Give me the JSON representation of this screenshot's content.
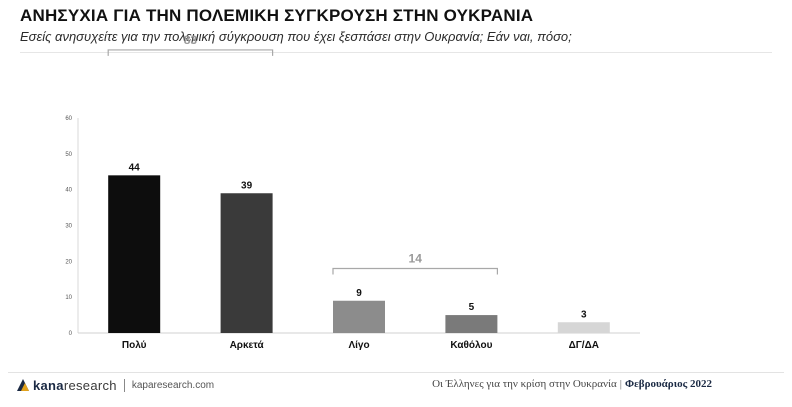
{
  "header": {
    "title": "ΑΝΗΣΥΧΙΑ ΓΙΑ ΤΗΝ ΠΟΛΕΜΙΚΗ ΣΥΓΚΡΟΥΣΗ ΣΤΗΝ ΟΥΚΡΑΝΙΑ",
    "subtitle": "Εσείς ανησυχείτε για την πολεμική σύγκρουση που έχει ξεσπάσει στην Ουκρανία; Εάν ναι, πόσο;"
  },
  "chart_data": {
    "type": "bar",
    "title": "",
    "xlabel": "",
    "ylabel": "",
    "categories": [
      "Πολύ",
      "Αρκετά",
      "Λίγο",
      "Καθόλου",
      "ΔΓ/ΔΑ"
    ],
    "values": [
      44,
      39,
      9,
      5,
      3
    ],
    "value_labels": [
      "44",
      "39",
      "9",
      "5",
      "3"
    ],
    "bar_colors": [
      "#0d0d0d",
      "#3a3a3a",
      "#8c8c8c",
      "#7a7a7a",
      "#d6d6d6"
    ],
    "ylim": [
      0,
      60
    ],
    "yticks": [
      "0",
      "10",
      "20",
      "30",
      "40",
      "50",
      "60"
    ],
    "grid": false,
    "legend": "none",
    "brackets": [
      {
        "label": "83",
        "from": 0,
        "to": 1,
        "level": 79
      },
      {
        "label": "14",
        "from": 2,
        "to": 3,
        "level": 18
      }
    ],
    "bracket_color": "#a8a8a8"
  },
  "footer": {
    "brand_kana": "kana",
    "brand_research": "research",
    "website": "kaparesearch.com",
    "report_title": "Οι Έλληνες για την κρίση στην Ουκρανία",
    "date": "Φεβρουάριος 2022",
    "brand_color": "#1b2a44"
  }
}
